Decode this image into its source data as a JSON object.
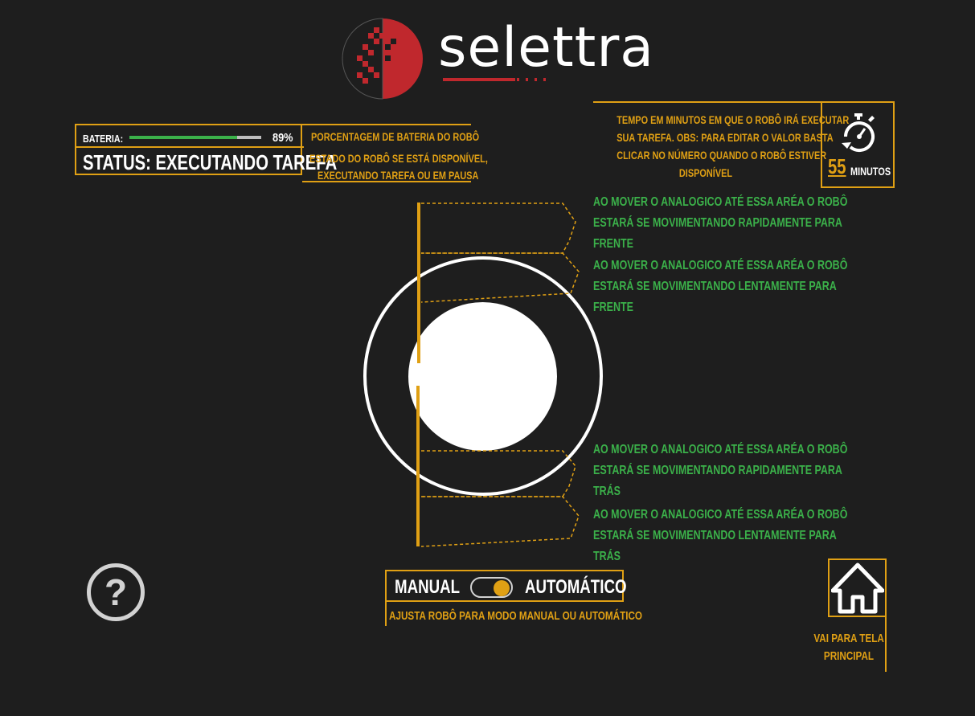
{
  "brand": {
    "name": "selettra",
    "red": "#c0282d"
  },
  "colors": {
    "accent": "#e0a014",
    "green": "#3bb14a",
    "background": "#1e1e1e"
  },
  "battery": {
    "label": "BATERIA:",
    "percent_text": "89%",
    "level": 0.89,
    "note": "PORCENTAGEM DE BATERIA DO ROBÔ"
  },
  "status": {
    "text": "STATUS: EXECUTANDO TAREFA",
    "note_line1": "ESTADO DO ROBÔ SE ESTÁ DISPONÍVEL,",
    "note_line2": "EXECUTANDO TAREFA OU EM PAUSA"
  },
  "timer": {
    "icon": "stopwatch-icon",
    "value": "55",
    "unit": "MINUTOS",
    "note_line1": "TEMPO EM MINUTOS EM QUE O ROBÔ IRÁ EXECUTAR",
    "note_line2": "SUA TAREFA. OBS: PARA EDITAR O VALOR BASTA",
    "note_line3": "CLICAR NO NÚMERO QUANDO O ROBÔ ESTIVER",
    "note_line4": "DISPONÍVEL"
  },
  "joystick": {
    "zones": [
      {
        "line1": "AO MOVER O ANALOGICO ATÉ  ESSA ARÉA O ROBÔ",
        "line2": "ESTARÁ SE MOVIMENTANDO RAPIDAMENTE PARA",
        "line3": "FRENTE"
      },
      {
        "line1": "AO MOVER O ANALOGICO ATÉ  ESSA ARÉA O ROBÔ",
        "line2": "ESTARÁ SE MOVIMENTANDO LENTAMENTE PARA",
        "line3": "FRENTE"
      },
      {
        "line1": "AO MOVER O ANALOGICO ATÉ  ESSA ARÉA O ROBÔ",
        "line2": "ESTARÁ SE MOVIMENTANDO RAPIDAMENTE PARA",
        "line3": "TRÁS"
      },
      {
        "line1": "AO MOVER O ANALOGICO ATÉ  ESSA ARÉA O ROBÔ",
        "line2": "ESTARÁ SE MOVIMENTANDO LENTAMENTE PARA",
        "line3": "TRÁS"
      }
    ]
  },
  "help": {
    "icon": "help-icon",
    "glyph": "?"
  },
  "mode": {
    "manual_label": "MANUAL",
    "auto_label": "AUTOMÁTICO",
    "selected": "AUTOMÁTICO",
    "note": "AJUSTA ROBÔ PARA MODO MANUAL OU AUTOMÁTICO"
  },
  "home": {
    "icon": "home-icon",
    "note_line1": "VAI PARA TELA",
    "note_line2": "PRINCIPAL"
  }
}
